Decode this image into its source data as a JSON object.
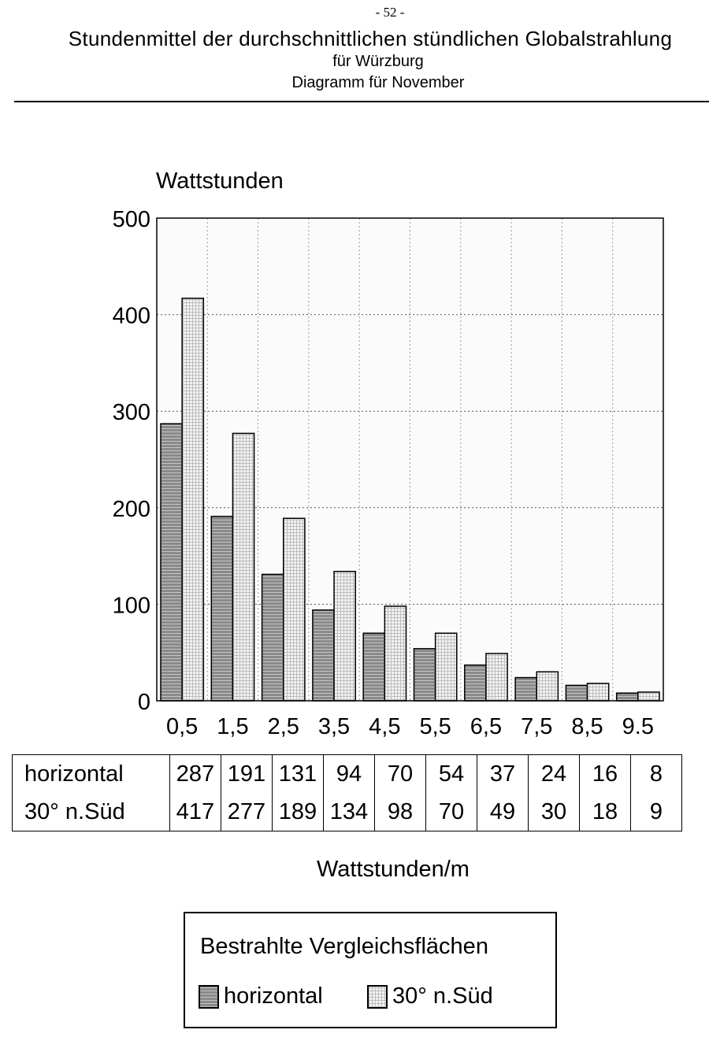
{
  "header": {
    "page_number": "- 52 -",
    "title": "Stundenmittel der durchschnittlichen stündlichen Globalstrahlung",
    "subtitle_line1": "für Würzburg",
    "subtitle_line2": "Diagramm für November"
  },
  "table": {
    "rows": [
      {
        "label": "horizontal",
        "values": [
          "287",
          "191",
          "131",
          "94",
          "70",
          "54",
          "37",
          "24",
          "16",
          "8"
        ]
      },
      {
        "label": "30° n.Süd",
        "values": [
          "417",
          "277",
          "189",
          "134",
          "98",
          "70",
          "49",
          "30",
          "18",
          "9"
        ]
      }
    ]
  },
  "units_label": "Wattstunden/m",
  "legend": {
    "title": "Bestrahlte Vergleichsflächen",
    "items": [
      "horizontal",
      "30° n.Süd"
    ]
  },
  "colors": {
    "horizontal_fill": "#8a8a8a",
    "south_fill": "#f2f2f2",
    "grid": "#555555"
  },
  "chart_data": {
    "type": "bar",
    "title": "Stundenmittel der durchschnittlichen stündlichen Globalstrahlung",
    "ylabel": "Wattstunden",
    "xlabel": "",
    "categories": [
      "0,5",
      "1,5",
      "2,5",
      "3,5",
      "4,5",
      "5,5",
      "6,5",
      "7,5",
      "8,5",
      "9.5"
    ],
    "series": [
      {
        "name": "horizontal",
        "values": [
          287,
          191,
          131,
          94,
          70,
          54,
          37,
          24,
          16,
          8
        ]
      },
      {
        "name": "30° n.Süd",
        "values": [
          417,
          277,
          189,
          134,
          98,
          70,
          49,
          30,
          18,
          9
        ]
      }
    ],
    "ylim": [
      0,
      500
    ],
    "yticks": [
      0,
      100,
      200,
      300,
      400,
      500
    ],
    "grid": true,
    "legend": "bottom"
  }
}
